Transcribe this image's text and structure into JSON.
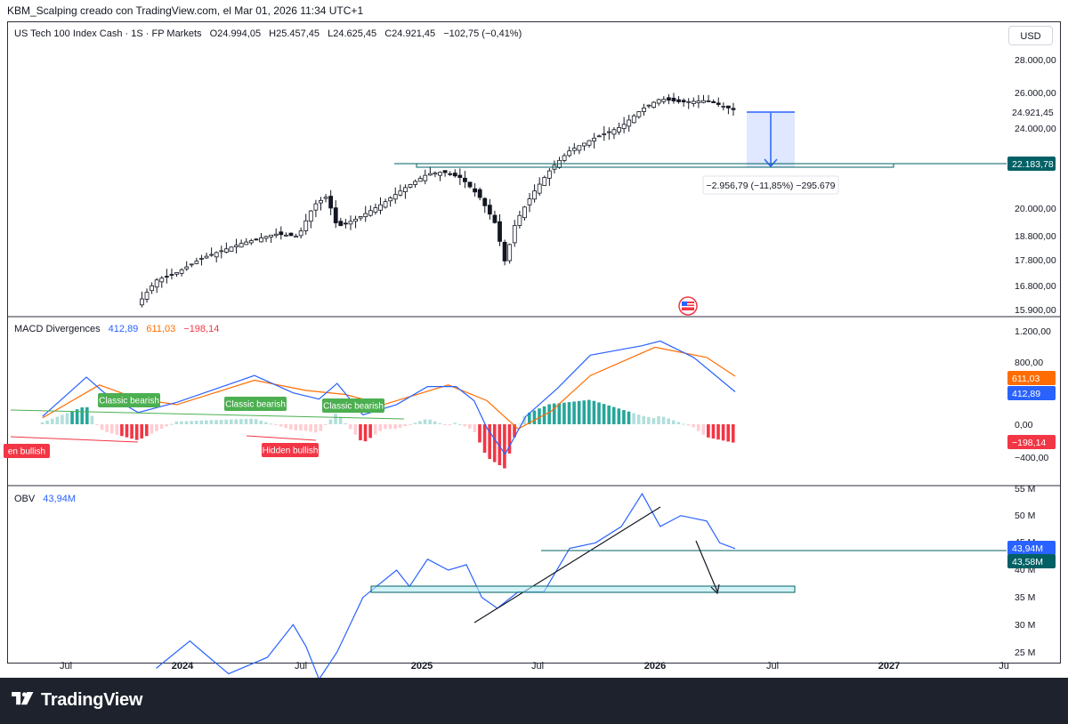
{
  "header": {
    "attribution": "KBM_Scalping creado con TradingView.com, el Mar 01, 2026 11:34 UTC+1",
    "currency_button": "USD"
  },
  "legend": {
    "symbol": "US Tech 100 Index Cash · 1S · FP Markets",
    "open": "O24.994,05",
    "high": "H25.457,45",
    "low": "L24.625,45",
    "close": "C24.921,45",
    "change": "−102,75 (−0,41%)"
  },
  "macd_legend": {
    "name": "MACD Divergences",
    "macd": "412,89",
    "signal": "611,03",
    "hist": "−198,14"
  },
  "obv_legend": {
    "name": "OBV",
    "value": "43,94M"
  },
  "measure_label": "−2.956,79 (−11,85%) −295.679",
  "divergence_labels": {
    "bear1": "Classic bearish",
    "bear2": "Classic bearish",
    "bear3": "Classic bearish",
    "bull1": "en bullish",
    "bull2": "Hidden bullish"
  },
  "price_axis": [
    "28.000,00",
    "26.000,00",
    "24.000,00",
    "20.000,00",
    "18.800,00",
    "17.800,00",
    "16.800,00",
    "15.900,00"
  ],
  "price_tags": {
    "last": "24.921,45",
    "level": "22.183,78"
  },
  "macd_axis": [
    "1.200,00",
    "800,00",
    "0,00",
    "−400,00"
  ],
  "macd_tags": {
    "signal": "611,03",
    "macd": "412,89",
    "hist": "−198,14"
  },
  "obv_axis": [
    "55 M",
    "50 M",
    "45 M",
    "40 M",
    "35 M",
    "30 M",
    "25 M"
  ],
  "obv_tags": {
    "obv": "43,94M",
    "level": "43,58M"
  },
  "time_axis": [
    {
      "label": "Jul",
      "bold": false
    },
    {
      "label": "2024",
      "bold": true
    },
    {
      "label": "Jul",
      "bold": false
    },
    {
      "label": "2025",
      "bold": true
    },
    {
      "label": "Jul",
      "bold": false
    },
    {
      "label": "2026",
      "bold": true
    },
    {
      "label": "Jul",
      "bold": false
    },
    {
      "label": "2027",
      "bold": true
    },
    {
      "label": "Ju",
      "bold": false
    }
  ],
  "footer": {
    "brand": "TradingView"
  },
  "colors": {
    "up": "#089981",
    "down": "#f23645",
    "macd": "#2962ff",
    "signal": "#ff6d00",
    "obv": "#2962ff",
    "level": "#006064",
    "bear_label": "#4caf50",
    "bull_label": "#f23645"
  },
  "chart_data": {
    "type": "candlestick",
    "timeframe": "1W",
    "price_series": {
      "name": "US Tech 100 Index Cash",
      "close_path": [
        [
          2023.48,
          15000
        ],
        [
          2023.75,
          14600
        ],
        [
          2023.92,
          16800
        ],
        [
          2024.0,
          17100
        ],
        [
          2024.1,
          17700
        ],
        [
          2024.25,
          18300
        ],
        [
          2024.38,
          18700
        ],
        [
          2024.47,
          18600
        ],
        [
          2024.53,
          20000
        ],
        [
          2024.58,
          20400
        ],
        [
          2024.62,
          19000
        ],
        [
          2024.7,
          19400
        ],
        [
          2024.8,
          20100
        ],
        [
          2024.88,
          20800
        ],
        [
          2024.97,
          21500
        ],
        [
          2025.03,
          21600
        ],
        [
          2025.1,
          21300
        ],
        [
          2025.17,
          20400
        ],
        [
          2025.23,
          19200
        ],
        [
          2025.27,
          17500
        ],
        [
          2025.31,
          19200
        ],
        [
          2025.38,
          20600
        ],
        [
          2025.45,
          21800
        ],
        [
          2025.52,
          22700
        ],
        [
          2025.62,
          23400
        ],
        [
          2025.72,
          24000
        ],
        [
          2025.8,
          25000
        ],
        [
          2025.87,
          25600
        ],
        [
          2025.95,
          25400
        ],
        [
          2026.05,
          25500
        ],
        [
          2026.16,
          24921.45
        ]
      ]
    },
    "price_level": 22183.78,
    "measure": {
      "change": -2956.79,
      "change_pct": -11.85,
      "ticks": -295679
    },
    "macd": {
      "macd_last": 412.89,
      "signal_last": 611.03,
      "hist_last": -198.14,
      "macd_path": [
        [
          2023.48,
          100
        ],
        [
          2023.65,
          600
        ],
        [
          2023.72,
          400
        ],
        [
          2023.85,
          150
        ],
        [
          2024.0,
          280
        ],
        [
          2024.3,
          620
        ],
        [
          2024.45,
          400
        ],
        [
          2024.55,
          320
        ],
        [
          2024.62,
          520
        ],
        [
          2024.72,
          120
        ],
        [
          2024.85,
          250
        ],
        [
          2024.97,
          480
        ],
        [
          2025.08,
          480
        ],
        [
          2025.15,
          300
        ],
        [
          2025.2,
          -50
        ],
        [
          2025.27,
          -380
        ],
        [
          2025.35,
          100
        ],
        [
          2025.47,
          450
        ],
        [
          2025.6,
          880
        ],
        [
          2025.8,
          1000
        ],
        [
          2025.87,
          1060
        ],
        [
          2026.0,
          850
        ],
        [
          2026.16,
          412.89
        ]
      ],
      "signal_path": [
        [
          2023.48,
          80
        ],
        [
          2023.7,
          500
        ],
        [
          2023.85,
          320
        ],
        [
          2024.0,
          250
        ],
        [
          2024.3,
          560
        ],
        [
          2024.5,
          430
        ],
        [
          2024.65,
          380
        ],
        [
          2024.8,
          250
        ],
        [
          2025.05,
          500
        ],
        [
          2025.2,
          300
        ],
        [
          2025.32,
          -60
        ],
        [
          2025.45,
          170
        ],
        [
          2025.6,
          620
        ],
        [
          2025.85,
          980
        ],
        [
          2026.05,
          850
        ],
        [
          2026.16,
          611.03
        ]
      ]
    },
    "obv": {
      "last": 43.94,
      "level": 43.58,
      "path_m": [
        [
          2023.92,
          22
        ],
        [
          2024.05,
          27
        ],
        [
          2024.1,
          25
        ],
        [
          2024.2,
          21
        ],
        [
          2024.35,
          24
        ],
        [
          2024.45,
          30
        ],
        [
          2024.5,
          26
        ],
        [
          2024.55,
          20
        ],
        [
          2024.62,
          25
        ],
        [
          2024.72,
          35
        ],
        [
          2024.85,
          40
        ],
        [
          2024.9,
          37
        ],
        [
          2024.97,
          42
        ],
        [
          2025.05,
          40
        ],
        [
          2025.12,
          41
        ],
        [
          2025.18,
          35
        ],
        [
          2025.24,
          33
        ],
        [
          2025.32,
          36
        ],
        [
          2025.42,
          36
        ],
        [
          2025.52,
          44
        ],
        [
          2025.62,
          45
        ],
        [
          2025.72,
          48
        ],
        [
          2025.8,
          54
        ],
        [
          2025.87,
          48
        ],
        [
          2025.95,
          50
        ],
        [
          2026.05,
          49
        ],
        [
          2026.1,
          45
        ],
        [
          2026.16,
          43.94
        ]
      ]
    },
    "xlim": [
      2023.35,
      2027.2
    ],
    "price_ylim": [
      15500,
      28800
    ],
    "macd_ylim": [
      -500,
      1300
    ],
    "obv_ylim": [
      24,
      56
    ],
    "grid": false,
    "legend_position": "top-left"
  }
}
